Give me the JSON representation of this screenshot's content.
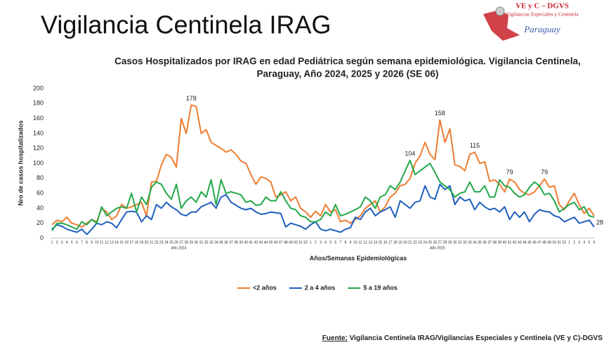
{
  "page_title": "Vigilancia Centinela IRAG",
  "logo": {
    "name": "VE y C – DGVS",
    "subtitle": "Vigilancias Especiales y Centinela",
    "country": "Paraguay"
  },
  "source": {
    "label": "Fuente:",
    "text": "Vigilancia  Centinela IRAG/Vigilancias Especiales y Centinela (VE y C)-DGVS"
  },
  "chart_data": {
    "type": "line",
    "title": [
      "Casos Hospitalizados por IRAG en edad Pediátrica según semana epidemiológica. Vigilancia Centinela,",
      "Paraguay, Año 2024, 2025 y 2026 (SE 06)"
    ],
    "y_label": "Nro de casos hospitalizados",
    "x_label": "Años/Semanas Epidemiológicas",
    "ylim": [
      0,
      200
    ],
    "yticks": [
      0,
      20,
      40,
      60,
      80,
      100,
      120,
      140,
      160,
      180,
      200
    ],
    "grid": false,
    "legend": "bottom",
    "categories": [
      "1",
      "2",
      "3",
      "4",
      "5",
      "6",
      "7",
      "8",
      "9",
      "10",
      "11",
      "12",
      "13",
      "14",
      "15",
      "16",
      "17",
      "18",
      "19",
      "20",
      "21",
      "22",
      "23",
      "24",
      "25",
      "26",
      "27",
      "28",
      "29",
      "30",
      "31",
      "32",
      "33",
      "34",
      "35",
      "36",
      "37",
      "38",
      "39",
      "40",
      "41",
      "42",
      "43",
      "44",
      "45",
      "46",
      "47",
      "48",
      "49",
      "50",
      "51",
      "52",
      "1",
      "2",
      "3",
      "4",
      "5",
      "6",
      "7",
      "8",
      "9",
      "10",
      "11",
      "12",
      "13",
      "14",
      "15",
      "16",
      "17",
      "18",
      "19",
      "20",
      "21",
      "22",
      "23",
      "24",
      "25",
      "26",
      "27",
      "28",
      "29",
      "30",
      "31",
      "32",
      "33",
      "34",
      "35",
      "36",
      "37",
      "38",
      "39",
      "40",
      "41",
      "42",
      "43",
      "44",
      "45",
      "46",
      "47",
      "48",
      "49",
      "50",
      "51",
      "52",
      "1",
      "2",
      "3",
      "4",
      "5",
      "6"
    ],
    "groups": [
      {
        "label": "Año 2024",
        "size": 52
      },
      {
        "label": "Año 2025",
        "size": 52
      }
    ],
    "series": [
      {
        "name": "<2 años",
        "color": "#ed7d31",
        "values": [
          18,
          24,
          22,
          28,
          20,
          18,
          15,
          20,
          25,
          22,
          40,
          35,
          25,
          30,
          45,
          40,
          42,
          45,
          48,
          30,
          75,
          76,
          98,
          112,
          108,
          95,
          160,
          140,
          178,
          176,
          140,
          145,
          128,
          124,
          120,
          115,
          118,
          112,
          103,
          100,
          85,
          72,
          82,
          80,
          75,
          55,
          58,
          62,
          50,
          55,
          40,
          35,
          28,
          36,
          30,
          45,
          35,
          38,
          22,
          24,
          20,
          25,
          30,
          40,
          45,
          50,
          35,
          42,
          55,
          60,
          70,
          72,
          80,
          100,
          110,
          128,
          112,
          105,
          158,
          128,
          146,
          98,
          96,
          90,
          112,
          115,
          100,
          102,
          76,
          78,
          72,
          62,
          79,
          75,
          65,
          60,
          58,
          62,
          70,
          79,
          68,
          70,
          45,
          38,
          50,
          60,
          45,
          33,
          40,
          30
        ],
        "value_labels": {
          "28": "178",
          "78": "158",
          "85": "115",
          "92": "79",
          "99": "79"
        }
      },
      {
        "name": "2 a 4 años",
        "color": "#1f5fbf",
        "values": [
          12,
          18,
          16,
          12,
          10,
          8,
          12,
          5,
          12,
          20,
          18,
          22,
          20,
          14,
          25,
          35,
          36,
          35,
          22,
          30,
          25,
          45,
          40,
          48,
          42,
          38,
          32,
          30,
          35,
          35,
          42,
          45,
          48,
          40,
          55,
          58,
          48,
          44,
          40,
          38,
          40,
          35,
          32,
          33,
          35,
          34,
          33,
          15,
          20,
          18,
          16,
          12,
          18,
          22,
          12,
          10,
          12,
          10,
          8,
          12,
          14,
          28,
          25,
          35,
          40,
          30,
          35,
          38,
          42,
          28,
          50,
          45,
          40,
          48,
          50,
          70,
          55,
          52,
          72,
          65,
          70,
          45,
          55,
          50,
          52,
          38,
          48,
          42,
          38,
          40,
          35,
          42,
          25,
          35,
          28,
          35,
          22,
          32,
          38,
          36,
          35,
          30,
          28,
          22,
          25,
          28,
          20,
          22,
          24,
          15
        ]
      },
      {
        "name": "5 a 19 años",
        "color": "#22a84a",
        "values": [
          10,
          20,
          20,
          18,
          15,
          12,
          22,
          18,
          25,
          20,
          42,
          30,
          35,
          40,
          42,
          40,
          60,
          35,
          55,
          45,
          68,
          75,
          72,
          60,
          52,
          72,
          40,
          50,
          55,
          48,
          62,
          55,
          78,
          45,
          78,
          60,
          62,
          60,
          58,
          48,
          50,
          44,
          45,
          55,
          50,
          50,
          62,
          50,
          40,
          38,
          30,
          28,
          22,
          22,
          25,
          35,
          30,
          45,
          30,
          32,
          35,
          38,
          42,
          55,
          50,
          40,
          55,
          58,
          70,
          65,
          75,
          90,
          104,
          85,
          90,
          95,
          100,
          88,
          75,
          70,
          65,
          55,
          60,
          62,
          75,
          62,
          62,
          70,
          55,
          55,
          78,
          70,
          68,
          60,
          55,
          58,
          68,
          75,
          70,
          58,
          60,
          50,
          35,
          40,
          45,
          48,
          38,
          42,
          30,
          28
        ],
        "value_labels": {
          "72": "104",
          "109": "28"
        }
      }
    ]
  }
}
